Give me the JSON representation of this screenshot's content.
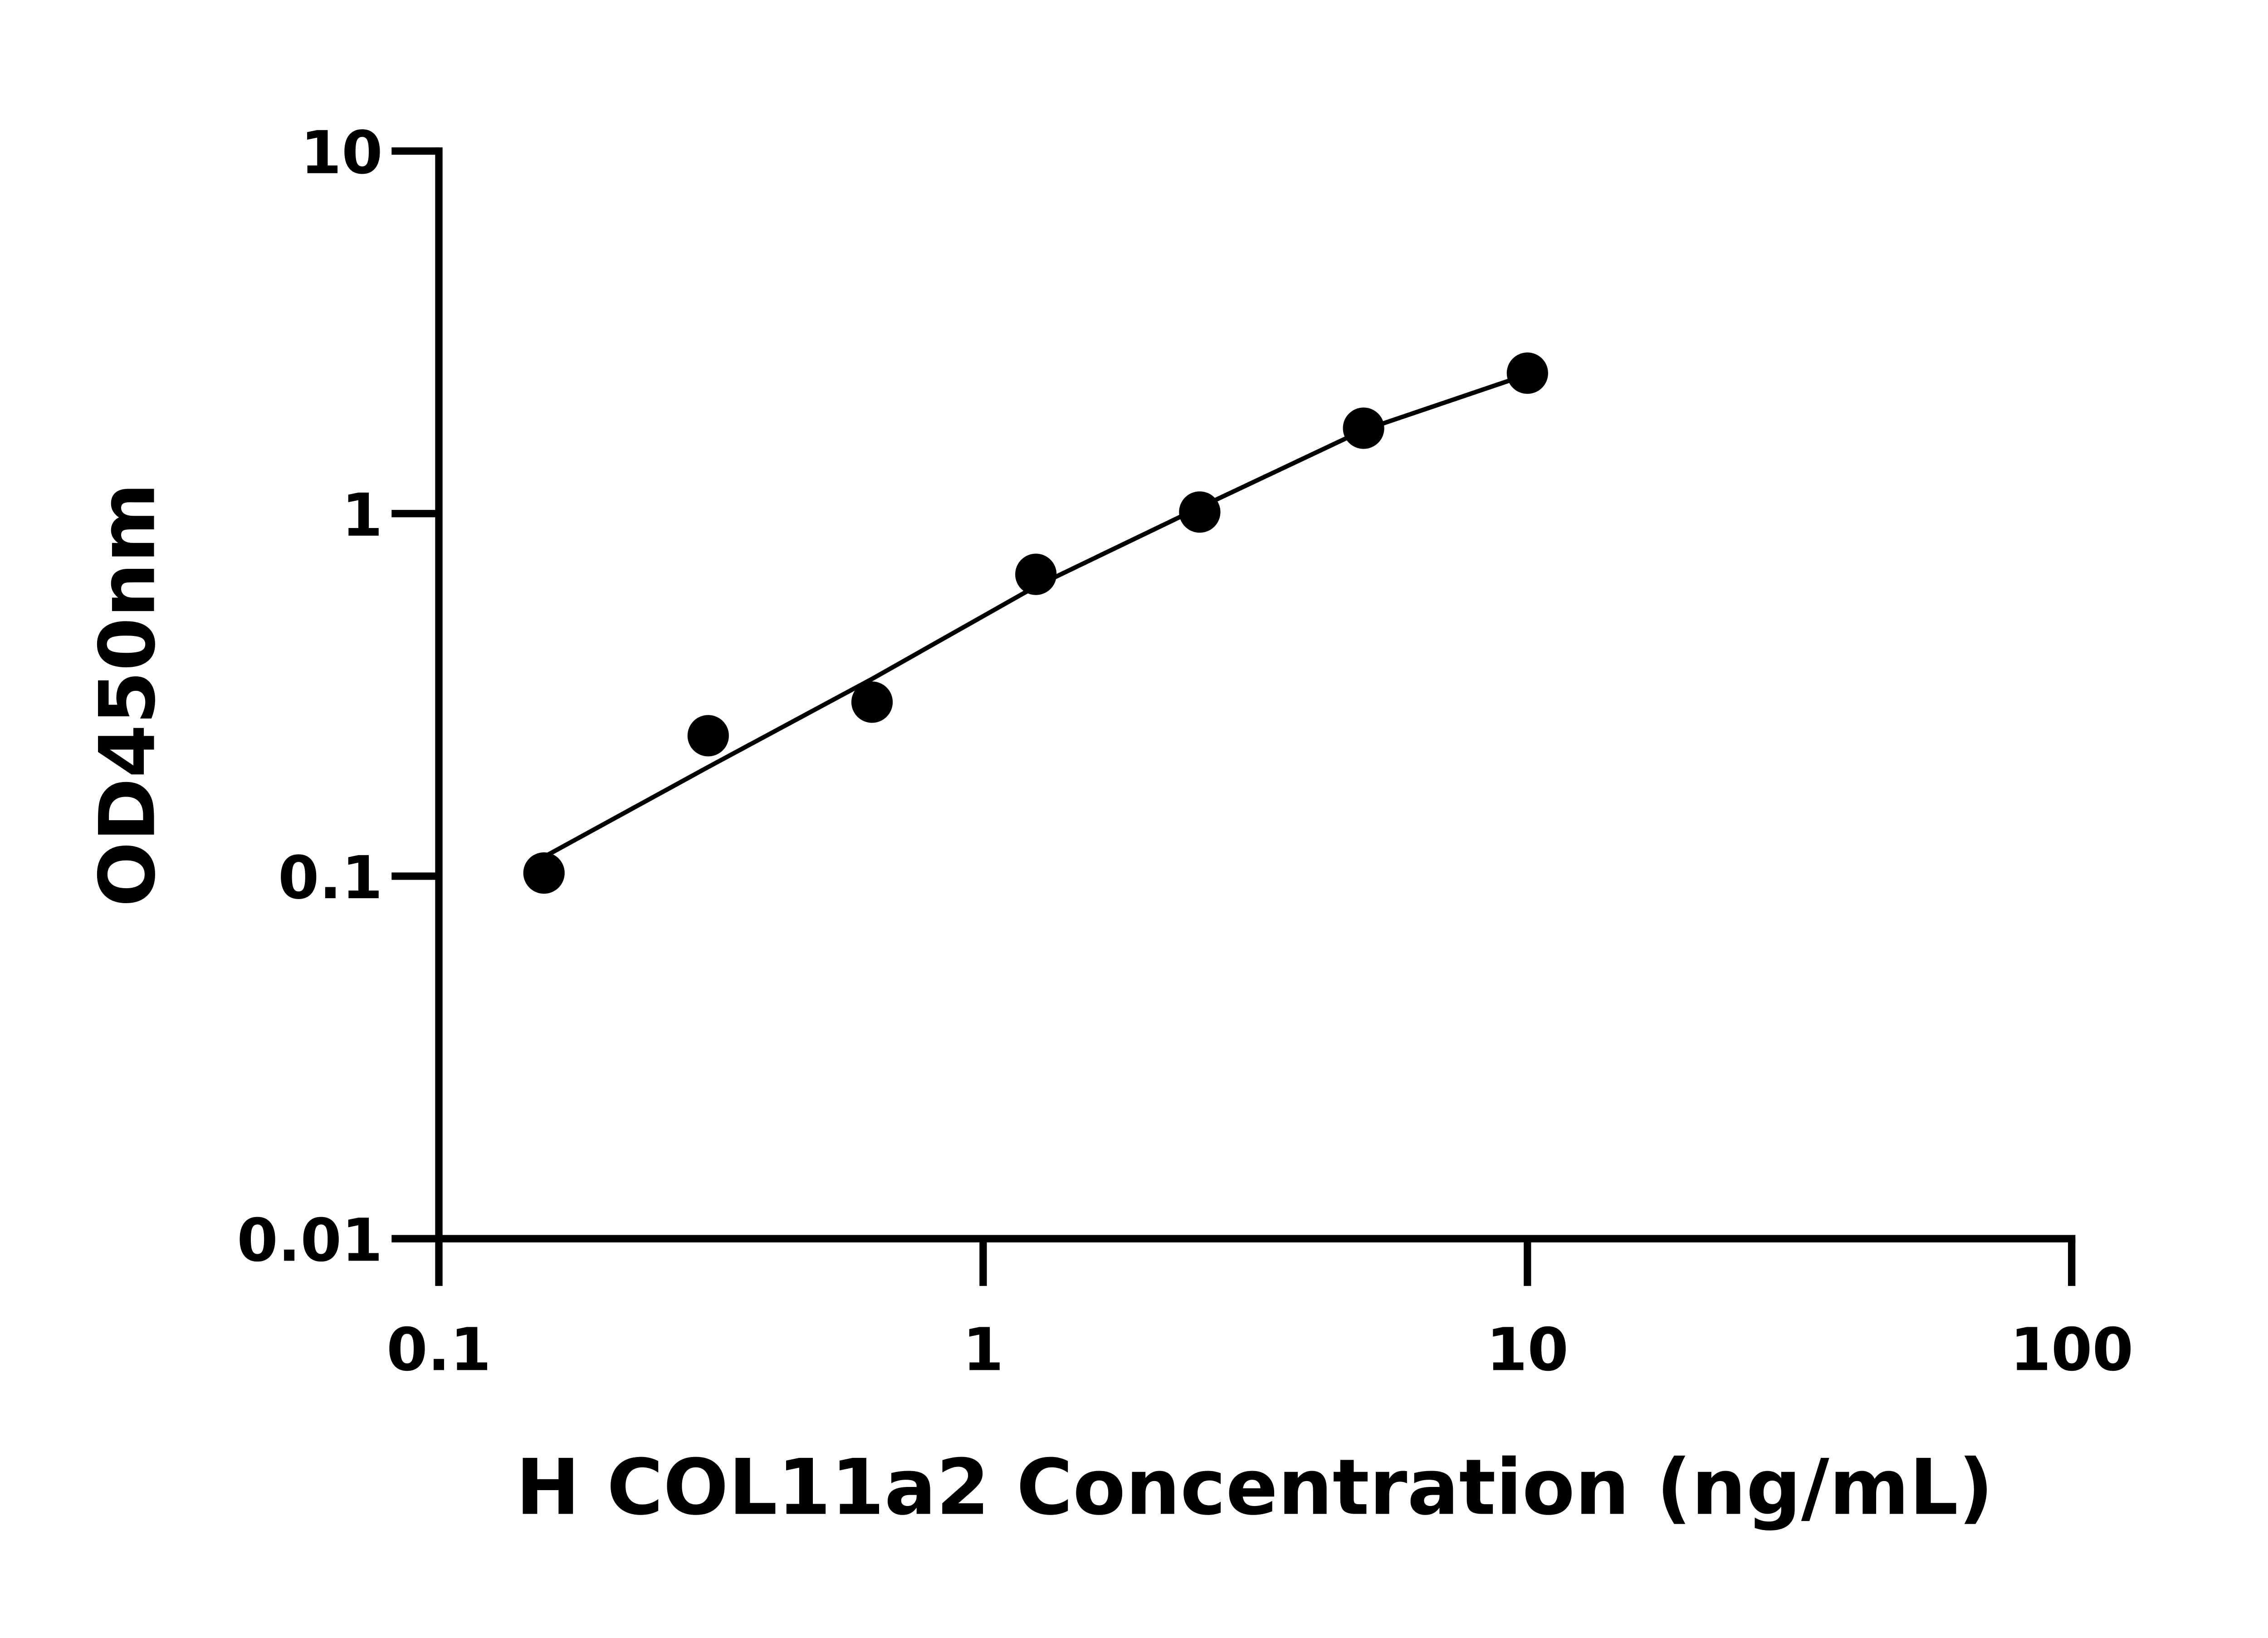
{
  "chart_data": {
    "type": "scatter",
    "x_label": "H COL11a2 Concentration (ng/mL)",
    "y_label": "OD450nm",
    "x_scale": "log",
    "y_scale": "log",
    "xlim": [
      0.1,
      100
    ],
    "ylim": [
      0.01,
      10
    ],
    "xticks": [
      0.1,
      1,
      10,
      100
    ],
    "yticks": [
      0.01,
      0.1,
      1,
      10
    ],
    "grid": false,
    "color": "#000000",
    "points": {
      "x": [
        0.156,
        0.3125,
        0.625,
        1.25,
        2.5,
        5,
        10
      ],
      "y": [
        0.102,
        0.244,
        0.302,
        0.68,
        1.01,
        1.72,
        2.44
      ]
    },
    "curve": {
      "x": [
        0.156,
        0.3125,
        0.625,
        1.25,
        2.5,
        5,
        10
      ],
      "y": [
        0.113,
        0.2,
        0.35,
        0.63,
        1.04,
        1.7,
        2.42
      ]
    }
  }
}
